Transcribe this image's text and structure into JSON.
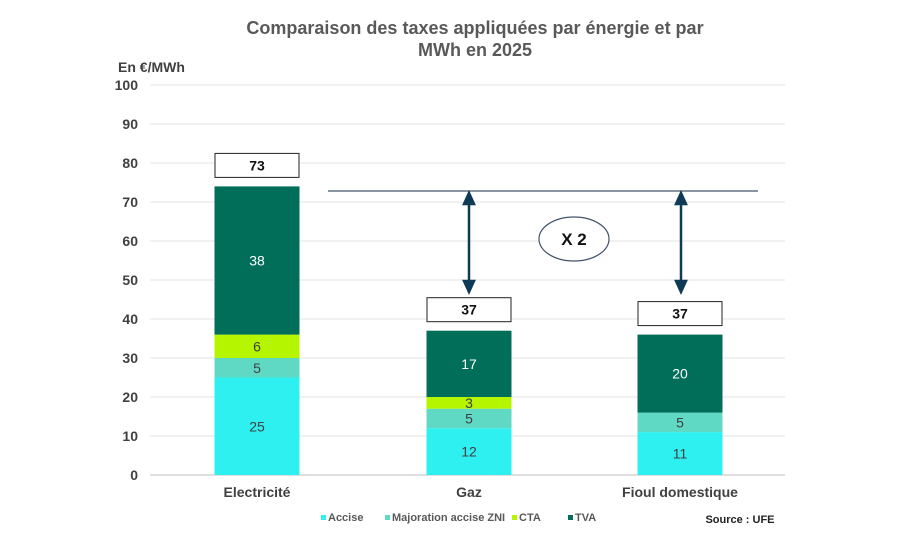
{
  "chart_data": {
    "type": "bar",
    "stacked": true,
    "title": "Comparaison des taxes appliquées par énergie et par MWh en 2025",
    "title_lines": [
      "Comparaison des taxes appliquées par énergie et par",
      "MWh en 2025"
    ],
    "ylabel": "En €/MWh",
    "xlabel": "",
    "ylim": [
      0,
      100
    ],
    "yticks": [
      0,
      10,
      20,
      30,
      40,
      50,
      60,
      70,
      80,
      90,
      100
    ],
    "grid": true,
    "legend_position": "bottom",
    "categories": [
      "Electricité",
      "Gaz",
      "Fioul domestique"
    ],
    "series": [
      {
        "name": "Accise",
        "color": "#2ff0f0",
        "values": [
          25,
          12,
          11
        ],
        "label_color": "#404040"
      },
      {
        "name": "Majoration accise ZNI",
        "color": "#5fd9c4",
        "values": [
          5,
          5,
          5
        ],
        "label_color": "#404040"
      },
      {
        "name": "CTA",
        "color": "#b5f500",
        "values": [
          6,
          3,
          0
        ],
        "label_color": "#404040"
      },
      {
        "name": "TVA",
        "color": "#006e58",
        "values": [
          38,
          17,
          20
        ],
        "label_color": "#ffffff"
      }
    ],
    "totals": [
      73,
      37,
      37
    ],
    "annotation": "X 2",
    "source": "Source : UFE"
  }
}
